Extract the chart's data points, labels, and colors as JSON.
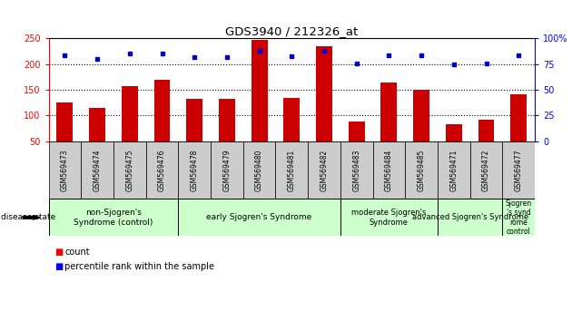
{
  "title": "GDS3940 / 212326_at",
  "samples": [
    "GSM569473",
    "GSM569474",
    "GSM569475",
    "GSM569476",
    "GSM569478",
    "GSM569479",
    "GSM569480",
    "GSM569481",
    "GSM569482",
    "GSM569483",
    "GSM569484",
    "GSM569485",
    "GSM569471",
    "GSM569472",
    "GSM569477"
  ],
  "counts": [
    125,
    115,
    157,
    170,
    132,
    133,
    247,
    135,
    235,
    88,
    165,
    150,
    84,
    92,
    142
  ],
  "percentiles": [
    84,
    80,
    85,
    85,
    82,
    82,
    88,
    83,
    88,
    76,
    84,
    84,
    75,
    76,
    84
  ],
  "bar_color": "#cc0000",
  "dot_color": "#0000cc",
  "ylim_left": [
    50,
    250
  ],
  "ylim_right": [
    0,
    100
  ],
  "yticks_left": [
    50,
    100,
    150,
    200,
    250
  ],
  "yticks_right": [
    0,
    25,
    50,
    75,
    100
  ],
  "yticklabels_right": [
    "0",
    "25",
    "50",
    "75",
    "100%"
  ],
  "grid_values": [
    100,
    150,
    200
  ],
  "groups": [
    {
      "label": "non-Sjogren's\nSyndrome (control)",
      "start": 0,
      "end": 4
    },
    {
      "label": "early Sjogren's Syndrome",
      "start": 4,
      "end": 9
    },
    {
      "label": "moderate Sjogren's\nSyndrome",
      "start": 9,
      "end": 12
    },
    {
      "label": "advanced Sjogren's Syndrome",
      "start": 12,
      "end": 14
    },
    {
      "label": "Sjogren\n's synd\nrome\ncontrol",
      "start": 14,
      "end": 15
    }
  ],
  "group_color": "#ccffcc",
  "legend_count_label": "count",
  "legend_percentile_label": "percentile rank within the sample",
  "xlabel_disease": "disease state",
  "bar_width": 0.5,
  "tick_bg_color": "#cccccc",
  "group_label_fontsize": [
    6.5,
    6.5,
    6.0,
    6.0,
    5.5
  ]
}
